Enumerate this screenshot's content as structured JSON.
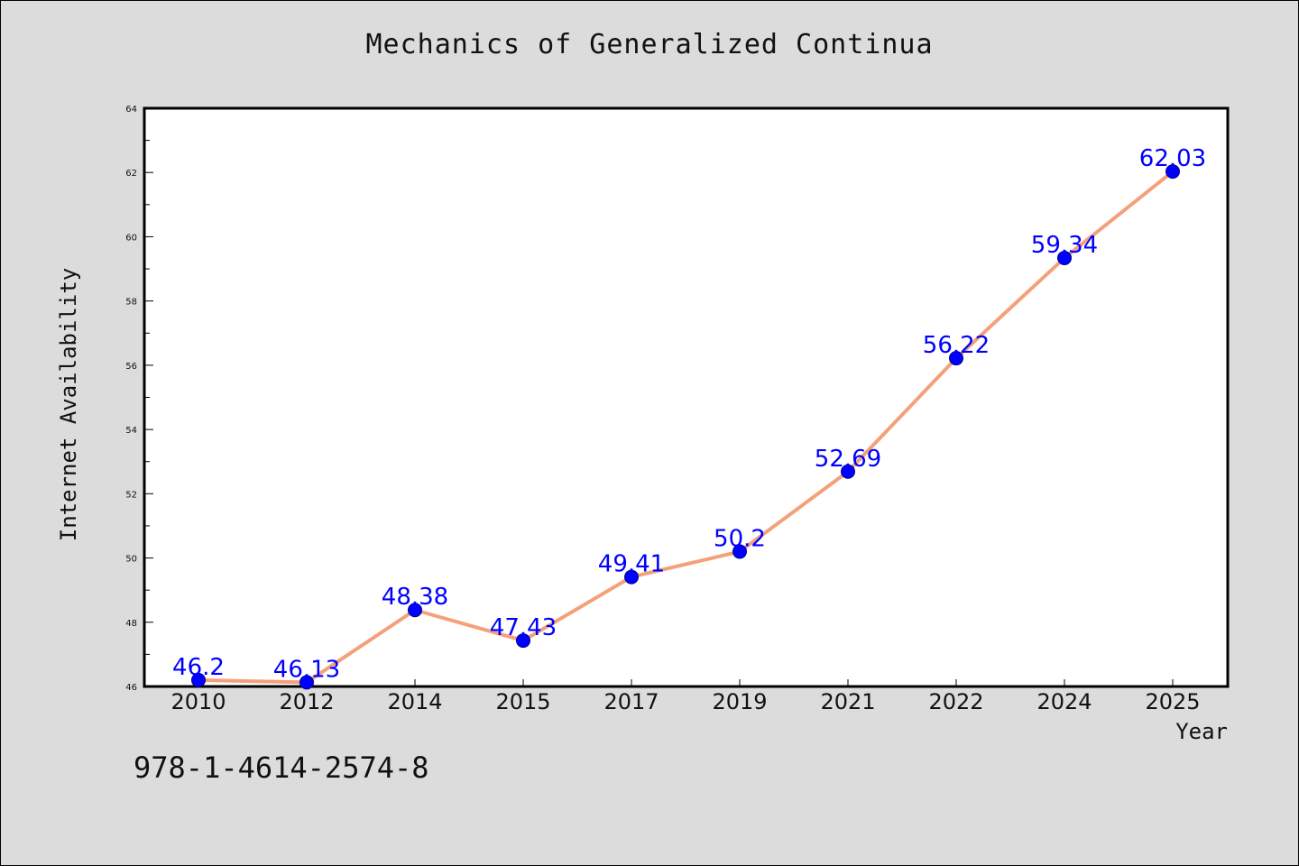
{
  "isbn": "978-1-4614-2574-8",
  "colors": {
    "background": "#dcdcdc",
    "plot_background": "#ffffff",
    "line": "#f4a07a",
    "marker": "#0000ff",
    "data_label": "#0000ff"
  },
  "chart_data": {
    "type": "line",
    "title": "Mechanics of Generalized Continua",
    "xlabel": "Year",
    "ylabel": "Internet Availability",
    "categories": [
      "2010",
      "2012",
      "2014",
      "2015",
      "2017",
      "2019",
      "2021",
      "2022",
      "2024",
      "2025"
    ],
    "series": [
      {
        "values": [
          46.2,
          46.13,
          48.38,
          47.43,
          49.41,
          50.2,
          52.69,
          56.22,
          59.34,
          62.03
        ],
        "labels": [
          "46.2",
          "46.13",
          "48.38",
          "47.43",
          "49.41",
          "50.2",
          "52.69",
          "56.22",
          "59.34",
          "62.03"
        ]
      }
    ],
    "ylim": [
      46,
      64
    ],
    "yticks": [
      "46",
      "48",
      "50",
      "52",
      "54",
      "56",
      "58",
      "60",
      "62",
      "64"
    ],
    "grid": false,
    "legend": "none"
  }
}
